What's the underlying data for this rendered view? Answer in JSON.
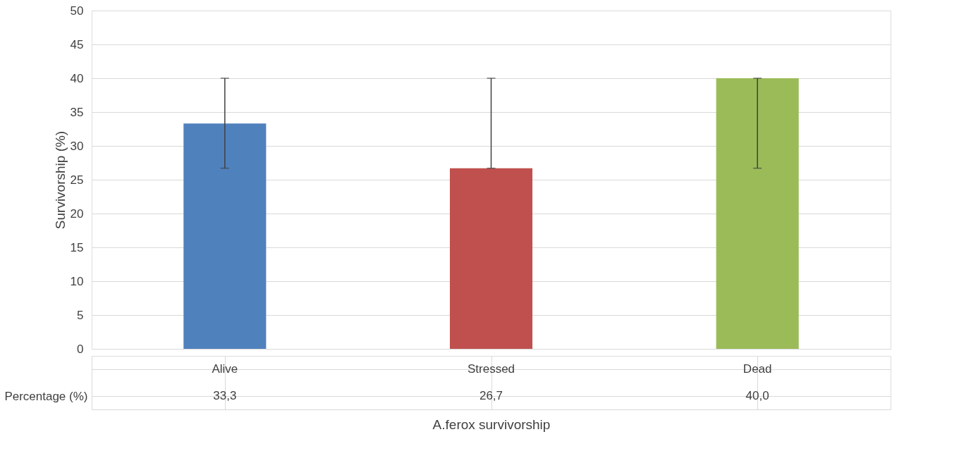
{
  "chart_data": {
    "type": "bar",
    "xlabel": "A.ferox survivorship",
    "ylabel": "Survivorship (%)",
    "categories": [
      "Alive",
      "Stressed",
      "Dead"
    ],
    "series": [
      {
        "name": "Percentage (%)",
        "colors": [
          "#4f81bd",
          "#c0504d",
          "#9bbb59"
        ],
        "values": [
          33.3,
          26.7,
          40.0
        ],
        "value_labels": [
          "33,3",
          "26,7",
          "40,0"
        ],
        "errors": [
          [
            26.7,
            40
          ],
          [
            26.7,
            40
          ],
          [
            26.7,
            40
          ]
        ]
      }
    ],
    "ylim": [
      0,
      50
    ],
    "yticks": [
      0,
      5,
      10,
      15,
      20,
      25,
      30,
      35,
      40,
      45,
      50
    ],
    "grid": "y"
  }
}
